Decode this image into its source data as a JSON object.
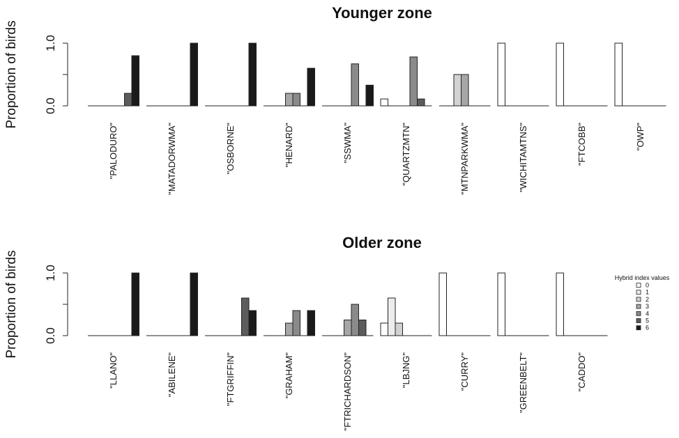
{
  "chart_data": [
    {
      "type": "bar",
      "title": "Younger zone",
      "ylabel": "Proportion of birds",
      "ylim": [
        0,
        1
      ],
      "yticks": [
        "0.0",
        "1.0"
      ],
      "categories": [
        "\"PALODURO\"",
        "\"MATADORWMA\"",
        "\"OSBORNE\"",
        "\"HENARD\"",
        "\"SSWMA\"",
        "\"QUARTZMTN\"",
        "\"MTNPARKWMA\"",
        "\"WICHITAMTNS\"",
        "\"FTCOBB\"",
        "\"OWP\""
      ],
      "values": [
        [
          0,
          0,
          0,
          0,
          0,
          0.2,
          0.8
        ],
        [
          0,
          0,
          0,
          0,
          0,
          0,
          1.0
        ],
        [
          0,
          0,
          0,
          0,
          0,
          0,
          1.0
        ],
        [
          0,
          0,
          0,
          0.2,
          0.2,
          0,
          0.6
        ],
        [
          0,
          0,
          0,
          0,
          0.67,
          0,
          0.33
        ],
        [
          0.11,
          0,
          0,
          0,
          0.78,
          0.11,
          0
        ],
        [
          0,
          0,
          0.5,
          0.5,
          0,
          0,
          0
        ],
        [
          1.0,
          0,
          0,
          0,
          0,
          0,
          0
        ],
        [
          1.0,
          0,
          0,
          0,
          0,
          0,
          0
        ],
        [
          1.0,
          0,
          0,
          0,
          0,
          0,
          0
        ]
      ]
    },
    {
      "type": "bar",
      "title": "Older zone",
      "ylabel": "Proportion of birds",
      "ylim": [
        0,
        1
      ],
      "yticks": [
        "0.0",
        "1.0"
      ],
      "categories": [
        "\"LLANO\"",
        "\"ABILENE\"",
        "\"FTGRIFFIN\"",
        "\"GRAHAM\"",
        "\"FTRICHARDSON\"",
        "\"LBJNG\"",
        "\"CURRY\"",
        "\"GREENBELT\"",
        "\"CADDO\""
      ],
      "values": [
        [
          0,
          0,
          0,
          0,
          0,
          0,
          1.0
        ],
        [
          0,
          0,
          0,
          0,
          0,
          0,
          1.0
        ],
        [
          0,
          0,
          0,
          0,
          0,
          0.6,
          0.4
        ],
        [
          0,
          0,
          0,
          0.2,
          0.4,
          0,
          0.4
        ],
        [
          0,
          0,
          0,
          0.25,
          0.5,
          0.25,
          0
        ],
        [
          0.2,
          0.6,
          0.2,
          0,
          0,
          0,
          0
        ],
        [
          1.0,
          0,
          0,
          0,
          0,
          0,
          0
        ],
        [
          1.0,
          0,
          0,
          0,
          0,
          0,
          0
        ],
        [
          1.0,
          0,
          0,
          0,
          0,
          0,
          0
        ]
      ]
    }
  ],
  "legend": {
    "title": "Hybrid index values",
    "labels": [
      "0",
      "1",
      "2",
      "3",
      "4",
      "5",
      "6"
    ],
    "colors": [
      "#ffffff",
      "#ececec",
      "#d2d2d2",
      "#a6a6a6",
      "#8a8a8a",
      "#5c5c5c",
      "#1a1a1a"
    ],
    "placement": "right"
  }
}
